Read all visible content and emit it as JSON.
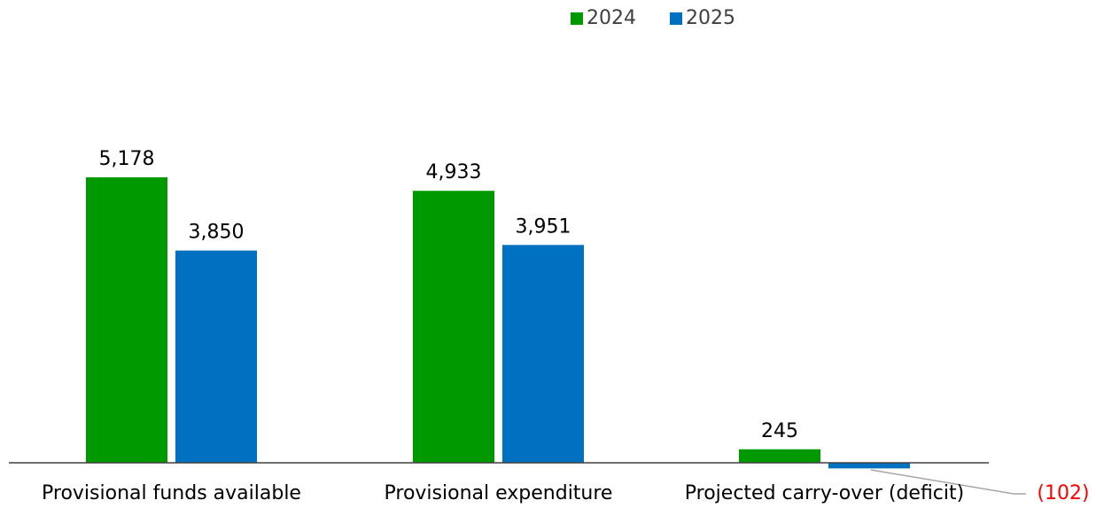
{
  "chart_data": {
    "type": "bar",
    "categories": [
      "Provisional funds available",
      "Provisional expenditure",
      "Projected carry-over (deficit)"
    ],
    "series": [
      {
        "name": "2024",
        "values": [
          5178,
          4933,
          245
        ],
        "labels": [
          "5,178",
          "4,933",
          "245"
        ],
        "color": "#009900"
      },
      {
        "name": "2025",
        "values": [
          3850,
          3951,
          -102
        ],
        "labels": [
          "3,850",
          "3,951",
          "(102)"
        ],
        "color": "#0070C0"
      }
    ],
    "ylim": [
      -102,
      5178
    ],
    "legend_position": "top",
    "grid": false,
    "negative_label_color": "#FF0000",
    "axis_color": "#404040",
    "text_color": "#000000",
    "leader_line_color": "#A6A6A6"
  }
}
